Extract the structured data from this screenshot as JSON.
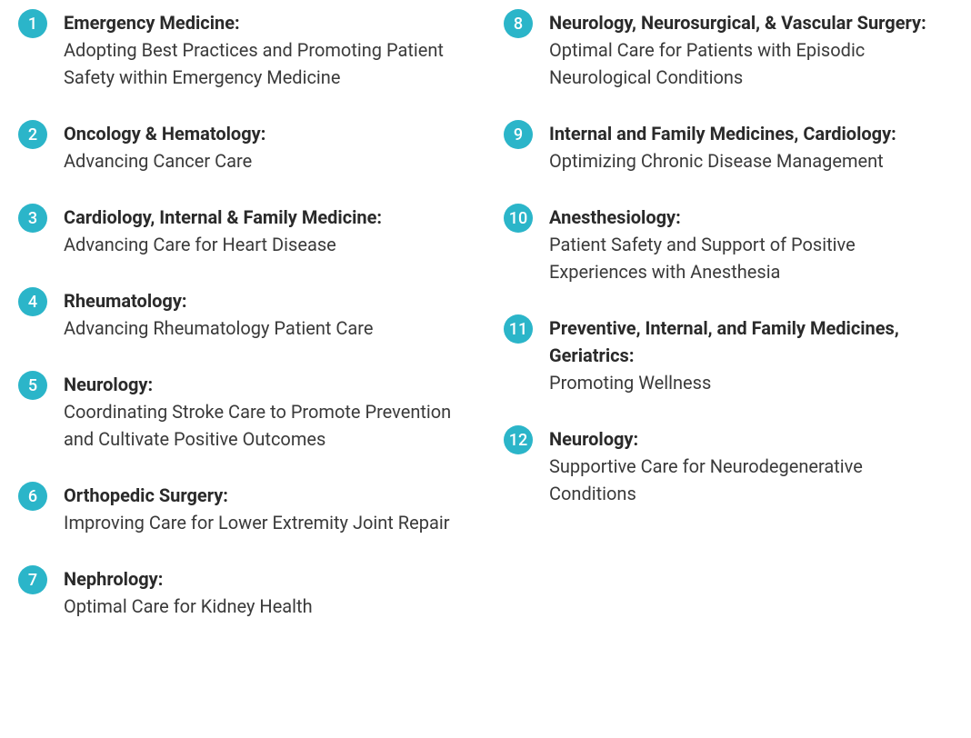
{
  "styling": {
    "badge_bg_color": "#2bb5c9",
    "badge_text_color": "#ffffff",
    "title_color": "#2a2a2a",
    "description_color": "#3a3a3a",
    "background_color": "#ffffff",
    "title_fontsize": 20,
    "description_fontsize": 20,
    "badge_diameter": 32,
    "badge_fontsize": 18
  },
  "left_column": [
    {
      "number": "1",
      "title": "Emergency Medicine:",
      "description": "Adopting Best Practices and Promoting Patient Safety within Emergency Medicine"
    },
    {
      "number": "2",
      "title": "Oncology & Hematology:",
      "description": "Advancing Cancer Care"
    },
    {
      "number": "3",
      "title": "Cardiology, Internal & Family Medicine:",
      "description": "Advancing Care for Heart Disease"
    },
    {
      "number": "4",
      "title": "Rheumatology:",
      "description": "Advancing Rheumatology Patient Care"
    },
    {
      "number": "5",
      "title": "Neurology:",
      "description": "Coordinating Stroke Care to Promote Prevention and Cultivate Positive Outcomes"
    },
    {
      "number": "6",
      "title": "Orthopedic Surgery:",
      "description": "Improving Care for Lower Extremity Joint Repair"
    },
    {
      "number": "7",
      "title": "Nephrology:",
      "description": "Optimal Care for Kidney Health"
    }
  ],
  "right_column": [
    {
      "number": "8",
      "title": "Neurology, Neurosurgical, & Vascular Surgery:",
      "description": "Optimal Care for Patients with Episodic Neurological Conditions"
    },
    {
      "number": "9",
      "title": "Internal and Family Medicines, Cardiology:",
      "description": "Optimizing Chronic Disease Management"
    },
    {
      "number": "10",
      "title": "Anesthesiology:",
      "description": "Patient Safety and Support of Positive Experiences with Anesthesia"
    },
    {
      "number": "11",
      "title": "Preventive, Internal, and Family Medicines, Geriatrics:",
      "description": "Promoting Wellness"
    },
    {
      "number": "12",
      "title": "Neurology:",
      "description": "Supportive Care for Neurodegenerative Conditions"
    }
  ]
}
